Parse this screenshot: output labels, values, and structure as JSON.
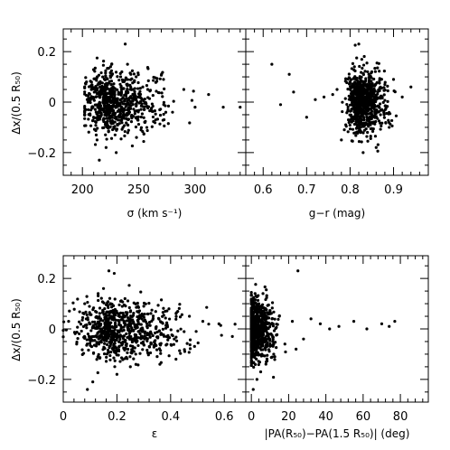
{
  "chart_data": [
    {
      "id": "sigma",
      "type": "scatter",
      "xlabel": "σ (km s⁻¹)",
      "ylabel": "Δx/(0.5 R₅₀)",
      "xlim": [
        183,
        345
      ],
      "ylim": [
        -0.29,
        0.29
      ],
      "xticks": [
        200,
        250,
        300
      ],
      "yticks": [
        -0.2,
        0,
        0.2
      ],
      "xtick_labels": [
        "200",
        "250",
        "300"
      ],
      "ytick_labels": [
        "−0.2",
        "0",
        "0.2"
      ],
      "grid": false,
      "x_center": 228,
      "x_spread": 22,
      "x_range": [
        202,
        345
      ],
      "y_spread": 0.06,
      "x": [
        203,
        208,
        213,
        218,
        222,
        226,
        230,
        235,
        240,
        246,
        252,
        258,
        265,
        272,
        280,
        290,
        300,
        312,
        325,
        340,
        215,
        225,
        238,
        221,
        229,
        243,
        217,
        233,
        212,
        248
      ],
      "y": [
        -0.03,
        0.06,
        -0.15,
        0.1,
        -0.05,
        0.15,
        -0.2,
        0.12,
        -0.09,
        0.08,
        -0.11,
        0.05,
        -0.07,
        0.09,
        -0.04,
        0.05,
        -0.02,
        0.03,
        -0.02,
        -0.02,
        -0.23,
        0.14,
        0.23,
        -0.18,
        -0.13,
        0.11,
        0.04,
        -0.06,
        0.02,
        -0.14
      ],
      "n_points": 750
    },
    {
      "id": "color",
      "type": "scatter",
      "xlabel": "g−r (mag)",
      "ylabel": "",
      "xlim": [
        0.56,
        0.98
      ],
      "ylim": [
        -0.29,
        0.29
      ],
      "xticks": [
        0.6,
        0.7,
        0.8,
        0.9
      ],
      "yticks": [
        -0.2,
        0,
        0.2
      ],
      "xtick_labels": [
        "0.6",
        "0.7",
        "0.8",
        "0.9"
      ],
      "ytick_labels": [],
      "grid": false,
      "x_center": 0.828,
      "x_spread": 0.028,
      "x_range": [
        0.6,
        0.95
      ],
      "y_spread": 0.06,
      "x": [
        0.62,
        0.64,
        0.66,
        0.67,
        0.7,
        0.72,
        0.74,
        0.76,
        0.78,
        0.8,
        0.82,
        0.84,
        0.86,
        0.88,
        0.9,
        0.92,
        0.94,
        0.79,
        0.83,
        0.85,
        0.87,
        0.81,
        0.89,
        0.77
      ],
      "y": [
        0.15,
        -0.01,
        0.11,
        0.04,
        -0.06,
        0.01,
        0.02,
        0.03,
        -0.15,
        0.08,
        0.23,
        -0.12,
        -0.18,
        0.07,
        0.09,
        0.02,
        0.06,
        -0.09,
        -0.2,
        0.12,
        -0.05,
        0.14,
        -0.1,
        0.05
      ],
      "n_points": 750
    },
    {
      "id": "ellipticity",
      "type": "scatter",
      "xlabel": "ε",
      "ylabel": "Δx/(0.5 R₅₀)",
      "xlim": [
        0,
        0.68
      ],
      "ylim": [
        -0.29,
        0.29
      ],
      "xticks": [
        0,
        0.2,
        0.4,
        0.6
      ],
      "yticks": [
        -0.2,
        0,
        0.2
      ],
      "xtick_labels": [
        "0",
        "0.2",
        "0.4",
        "0.6"
      ],
      "ytick_labels": [
        "−0.2",
        "0",
        "0.2"
      ],
      "grid": false,
      "x_center": 0.2,
      "x_spread": 0.12,
      "x_range": [
        0.0,
        0.64
      ],
      "y_spread": 0.055,
      "x": [
        0.02,
        0.05,
        0.09,
        0.13,
        0.17,
        0.2,
        0.23,
        0.27,
        0.3,
        0.34,
        0.38,
        0.42,
        0.47,
        0.52,
        0.58,
        0.63,
        0.19,
        0.11,
        0.25,
        0.08,
        0.36,
        0.15
      ],
      "y": [
        0.03,
        -0.06,
        -0.24,
        0.14,
        0.23,
        -0.18,
        0.12,
        -0.1,
        0.09,
        -0.05,
        0.07,
        -0.12,
        0.05,
        0.03,
        0.02,
        -0.03,
        0.22,
        -0.21,
        -0.15,
        0.1,
        -0.14,
        0.16
      ],
      "n_points": 750
    },
    {
      "id": "pa-twist",
      "type": "scatter",
      "xlabel": "|PA(R₅₀)−PA(1.5 R₅₀)| (deg)",
      "ylabel": "",
      "xlim": [
        -3,
        95
      ],
      "ylim": [
        -0.29,
        0.29
      ],
      "xticks": [
        0,
        20,
        40,
        60,
        80
      ],
      "yticks": [
        -0.2,
        0,
        0.2
      ],
      "xtick_labels": [
        "0",
        "20",
        "40",
        "60",
        "80"
      ],
      "ytick_labels": [],
      "grid": false,
      "x_center": 2,
      "x_spread": 5,
      "x_range": [
        0,
        80
      ],
      "y_spread": 0.06,
      "x": [
        1,
        2,
        3,
        4,
        5,
        6,
        8,
        10,
        12,
        15,
        18,
        22,
        25,
        28,
        32,
        37,
        42,
        47,
        55,
        62,
        70,
        74,
        77,
        24
      ],
      "y": [
        -0.24,
        0.14,
        -0.2,
        0.1,
        -0.17,
        0.06,
        -0.13,
        0.07,
        -0.1,
        0.05,
        -0.06,
        0.03,
        0.23,
        -0.04,
        0.04,
        0.02,
        0.0,
        0.01,
        0.03,
        0.0,
        0.02,
        0.01,
        0.03,
        -0.08
      ],
      "n_points": 750
    }
  ]
}
